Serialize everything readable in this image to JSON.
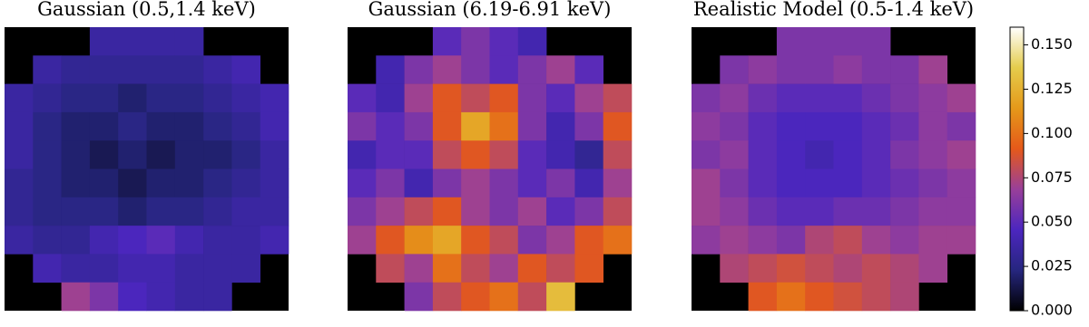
{
  "chart_data": [
    {
      "type": "heatmap",
      "title": "Gaussian (0.5,1.4 keV)",
      "z": [
        [
          null,
          null,
          null,
          0.035,
          0.035,
          0.035,
          0.035,
          null,
          null,
          null
        ],
        [
          null,
          0.035,
          0.03,
          0.03,
          0.03,
          0.03,
          0.03,
          0.035,
          0.04,
          null
        ],
        [
          0.035,
          0.03,
          0.025,
          0.025,
          0.02,
          0.025,
          0.025,
          0.03,
          0.035,
          0.04
        ],
        [
          0.035,
          0.025,
          0.02,
          0.02,
          0.025,
          0.02,
          0.02,
          0.025,
          0.03,
          0.04
        ],
        [
          0.035,
          0.025,
          0.02,
          0.015,
          0.02,
          0.015,
          0.02,
          0.02,
          0.025,
          0.035
        ],
        [
          0.03,
          0.025,
          0.02,
          0.02,
          0.015,
          0.02,
          0.02,
          0.025,
          0.03,
          0.035
        ],
        [
          0.03,
          0.025,
          0.025,
          0.025,
          0.02,
          0.025,
          0.025,
          0.03,
          0.035,
          0.035
        ],
        [
          0.035,
          0.03,
          0.03,
          0.04,
          0.045,
          0.05,
          0.04,
          0.035,
          0.035,
          0.04
        ],
        [
          null,
          0.04,
          0.035,
          0.035,
          0.04,
          0.04,
          0.035,
          0.035,
          0.035,
          null
        ],
        [
          null,
          null,
          0.07,
          0.06,
          0.045,
          0.04,
          0.035,
          0.035,
          null,
          null
        ]
      ]
    },
    {
      "type": "heatmap",
      "title": "Gaussian (6.19-6.91 keV)",
      "z": [
        [
          null,
          null,
          null,
          0.05,
          0.06,
          0.05,
          0.04,
          null,
          null,
          null
        ],
        [
          null,
          0.04,
          0.06,
          0.07,
          0.06,
          0.05,
          0.06,
          0.07,
          0.05,
          null
        ],
        [
          0.05,
          0.04,
          0.07,
          0.09,
          0.08,
          0.09,
          0.06,
          0.05,
          0.07,
          0.08
        ],
        [
          0.06,
          0.05,
          0.06,
          0.09,
          0.12,
          0.1,
          0.06,
          0.04,
          0.06,
          0.09
        ],
        [
          0.04,
          0.05,
          0.05,
          0.08,
          0.09,
          0.08,
          0.05,
          0.04,
          0.03,
          0.08
        ],
        [
          0.05,
          0.06,
          0.04,
          0.06,
          0.07,
          0.06,
          0.05,
          0.06,
          0.04,
          0.07
        ],
        [
          0.06,
          0.07,
          0.08,
          0.09,
          0.07,
          0.06,
          0.07,
          0.05,
          0.06,
          0.08
        ],
        [
          0.07,
          0.09,
          0.11,
          0.12,
          0.09,
          0.08,
          0.06,
          0.07,
          0.09,
          0.1
        ],
        [
          null,
          0.08,
          0.07,
          0.1,
          0.08,
          0.07,
          0.09,
          0.08,
          0.09,
          null
        ],
        [
          null,
          null,
          0.06,
          0.08,
          0.09,
          0.1,
          0.08,
          0.13,
          null,
          null
        ]
      ]
    },
    {
      "type": "heatmap",
      "title": "Realistic Model (0.5-1.4 keV)",
      "z": [
        [
          null,
          null,
          null,
          0.06,
          0.06,
          0.06,
          0.06,
          null,
          null,
          null
        ],
        [
          null,
          0.06,
          0.065,
          0.06,
          0.06,
          0.065,
          0.06,
          0.06,
          0.07,
          null
        ],
        [
          0.06,
          0.065,
          0.055,
          0.05,
          0.05,
          0.05,
          0.055,
          0.06,
          0.065,
          0.07
        ],
        [
          0.065,
          0.06,
          0.05,
          0.045,
          0.045,
          0.045,
          0.05,
          0.055,
          0.065,
          0.06
        ],
        [
          0.06,
          0.065,
          0.05,
          0.045,
          0.04,
          0.045,
          0.05,
          0.06,
          0.065,
          0.07
        ],
        [
          0.07,
          0.06,
          0.05,
          0.045,
          0.045,
          0.045,
          0.05,
          0.055,
          0.06,
          0.065
        ],
        [
          0.07,
          0.065,
          0.055,
          0.05,
          0.05,
          0.055,
          0.055,
          0.06,
          0.065,
          0.065
        ],
        [
          0.065,
          0.07,
          0.065,
          0.06,
          0.075,
          0.08,
          0.07,
          0.065,
          0.07,
          0.07
        ],
        [
          null,
          0.075,
          0.08,
          0.085,
          0.08,
          0.075,
          0.08,
          0.075,
          0.07,
          null
        ],
        [
          null,
          null,
          0.09,
          0.1,
          0.09,
          0.085,
          0.08,
          0.075,
          null,
          null
        ]
      ]
    },
    {
      "type": "colorbar",
      "ylim": [
        0,
        0.16
      ],
      "yticks": [
        {
          "value": 0,
          "label": "0.000"
        },
        {
          "value": 0.025,
          "label": "0.025"
        },
        {
          "value": 0.05,
          "label": "0.050"
        },
        {
          "value": 0.075,
          "label": "0.075"
        },
        {
          "value": 0.1,
          "label": "0.100"
        },
        {
          "value": 0.125,
          "label": "0.125"
        },
        {
          "value": 0.15,
          "label": "0.150"
        }
      ],
      "colormap": [
        "#000000",
        "#26267f",
        "#4c26bf",
        "#993f99",
        "#e5591a",
        "#e5991a",
        "#e5cc4c",
        "#ffffff"
      ]
    }
  ]
}
